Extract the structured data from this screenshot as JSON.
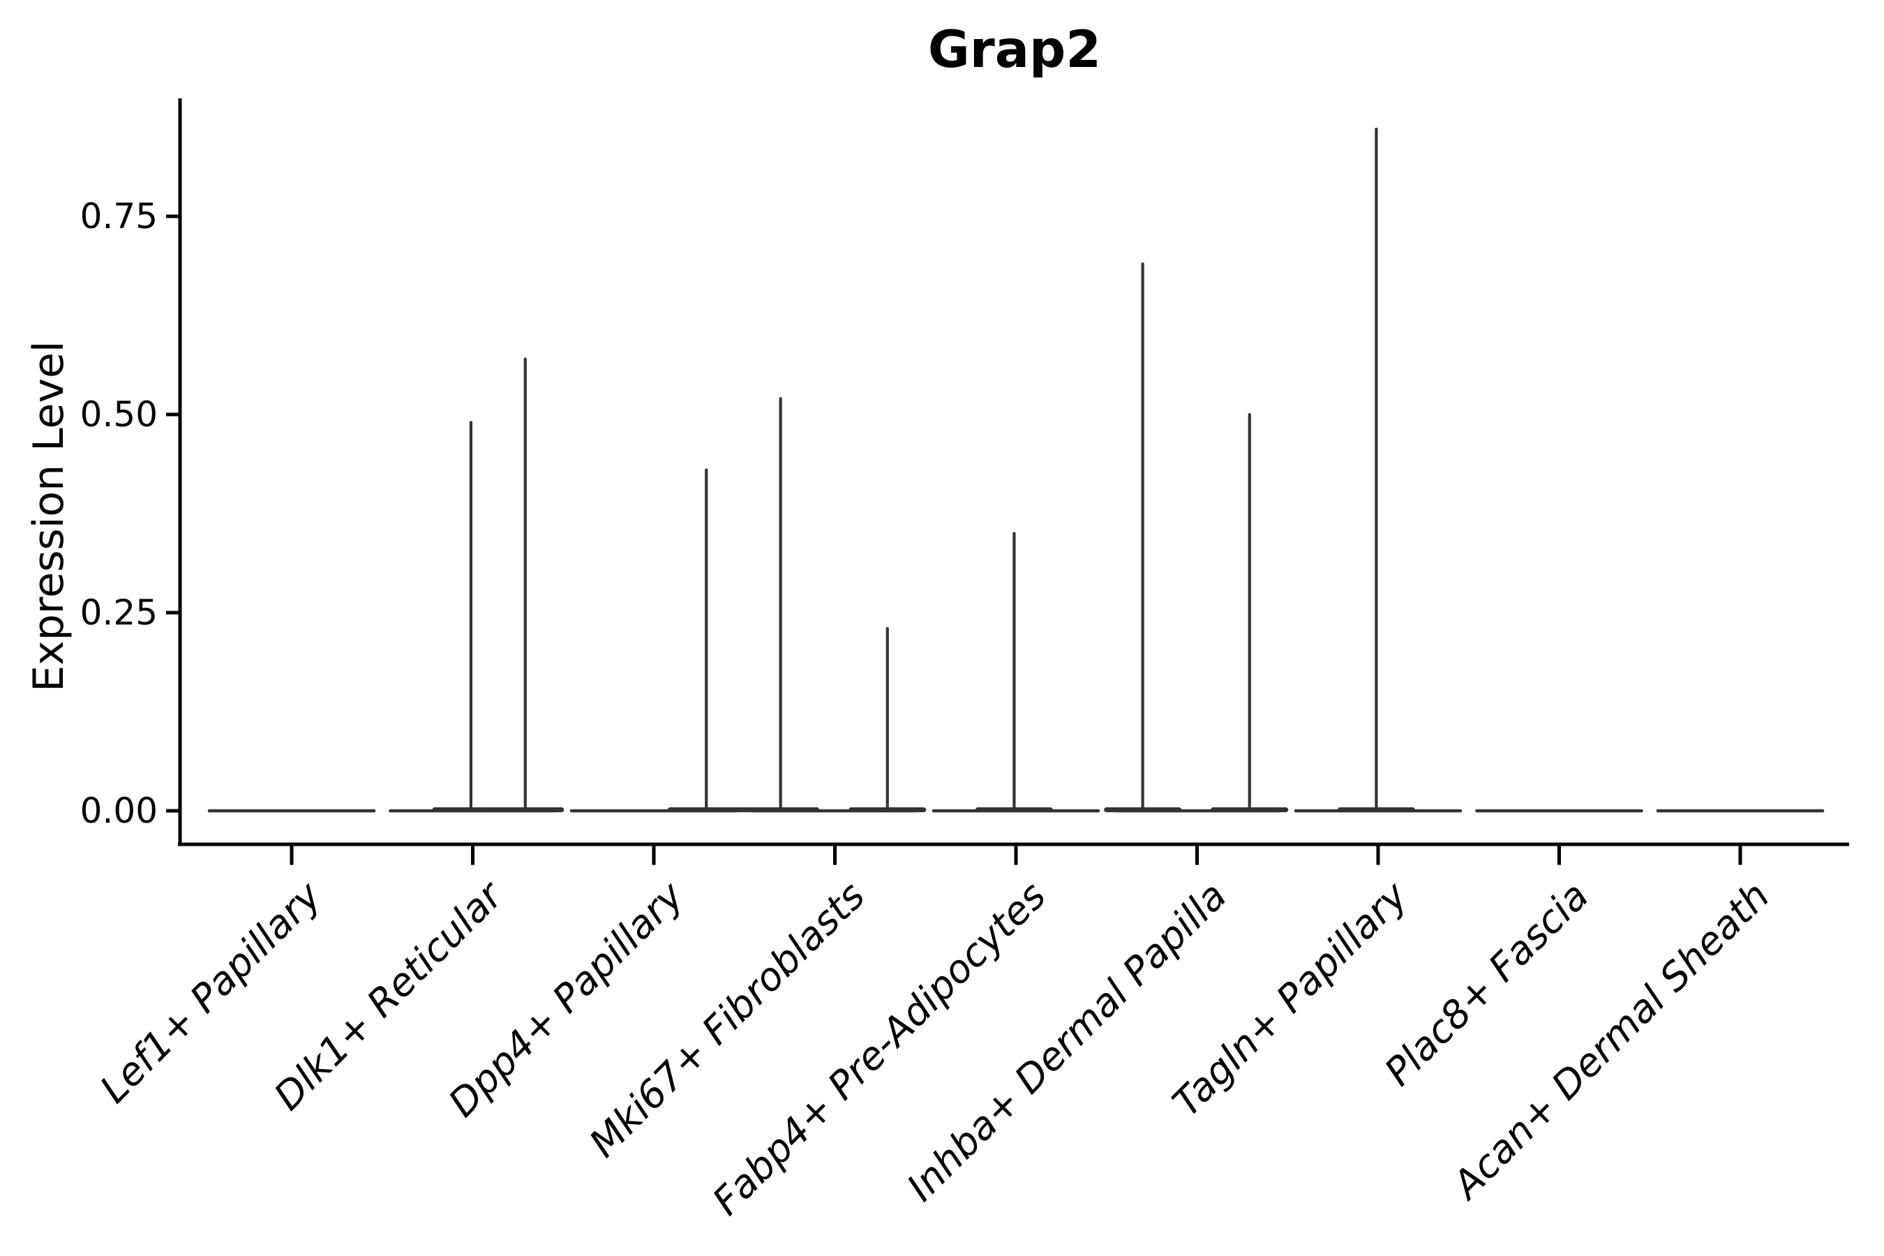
{
  "colors": {
    "background": "#ffffff",
    "axis": "#000000",
    "text": "#000000",
    "violin_outline": "#333333"
  },
  "chart_data": {
    "type": "violin",
    "title": "Grap2",
    "xlabel": "",
    "ylabel": "Expression Level",
    "ylim": [
      0,
      0.9
    ],
    "grid": false,
    "legend_position": "none",
    "ytick_values": [
      0,
      0.25,
      0.5,
      0.75
    ],
    "ytick_labels": [
      "0.00",
      "0.25",
      "0.50",
      "0.75"
    ],
    "categories": [
      "Lef1+ Papillary",
      "Dlk1+ Reticular",
      "Dpp4+ Papillary",
      "Mki67+ Fibroblasts",
      "Fabp4+ Pre-Adipocytes",
      "Inhba+ Dermal Papilla",
      "Tagln+ Papillary",
      "Plac8+ Fascia",
      "Acan+ Dermal Sheath"
    ],
    "xtick_label_rotation_deg": 45,
    "xtick_label_style": "italic",
    "violin_width_frac": 0.91,
    "violins": [
      {
        "category": "Lef1+ Papillary",
        "max_expression": 0.0,
        "spikes": []
      },
      {
        "category": "Dlk1+ Reticular",
        "max_expression": 0.57,
        "spikes": [
          {
            "offset_frac": -0.01,
            "value": 0.49
          },
          {
            "offset_frac": 0.29,
            "value": 0.57
          }
        ]
      },
      {
        "category": "Dpp4+ Papillary",
        "max_expression": 0.43,
        "spikes": [
          {
            "offset_frac": 0.29,
            "value": 0.43
          }
        ]
      },
      {
        "category": "Mki67+ Fibroblasts",
        "max_expression": 0.52,
        "spikes": [
          {
            "offset_frac": -0.3,
            "value": 0.52
          },
          {
            "offset_frac": 0.29,
            "value": 0.23
          }
        ]
      },
      {
        "category": "Fabp4+ Pre-Adipocytes",
        "max_expression": 0.35,
        "spikes": [
          {
            "offset_frac": -0.01,
            "value": 0.35
          }
        ]
      },
      {
        "category": "Inhba+ Dermal Papilla",
        "max_expression": 0.69,
        "spikes": [
          {
            "offset_frac": -0.3,
            "value": 0.69
          },
          {
            "offset_frac": 0.29,
            "value": 0.5
          }
        ]
      },
      {
        "category": "Tagln+ Papillary",
        "max_expression": 0.86,
        "spikes": [
          {
            "offset_frac": -0.01,
            "value": 0.86
          }
        ]
      },
      {
        "category": "Plac8+ Fascia",
        "max_expression": 0.0,
        "spikes": []
      },
      {
        "category": "Acan+ Dermal Sheath",
        "max_expression": 0.0,
        "spikes": []
      }
    ]
  }
}
